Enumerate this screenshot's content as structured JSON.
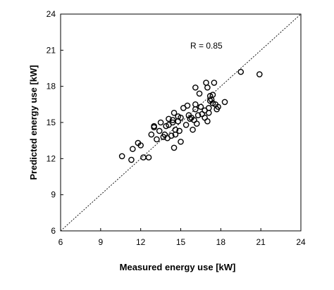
{
  "chart_data": {
    "type": "scatter",
    "xlabel": "Measured energy use [kW]",
    "ylabel": "Predicted energy use [kW]",
    "xlim": [
      6,
      24
    ],
    "ylim": [
      6,
      24
    ],
    "x_ticks": [
      "6",
      "9",
      "12",
      "15",
      "18",
      "21",
      "24"
    ],
    "y_ticks": [
      "6",
      "9",
      "12",
      "15",
      "18",
      "21",
      "24"
    ],
    "grid": false,
    "reference_line": "y = x (dotted)",
    "annotation": "R = 0.85",
    "marker": "open-circle",
    "points": [
      {
        "x": 10.6,
        "y": 12.2
      },
      {
        "x": 11.3,
        "y": 11.9
      },
      {
        "x": 11.4,
        "y": 12.8
      },
      {
        "x": 11.8,
        "y": 13.3
      },
      {
        "x": 12.0,
        "y": 13.1
      },
      {
        "x": 12.2,
        "y": 12.1
      },
      {
        "x": 12.6,
        "y": 12.1
      },
      {
        "x": 12.8,
        "y": 14.0
      },
      {
        "x": 13.0,
        "y": 14.7
      },
      {
        "x": 13.0,
        "y": 14.6
      },
      {
        "x": 13.2,
        "y": 13.6
      },
      {
        "x": 13.4,
        "y": 14.3
      },
      {
        "x": 13.5,
        "y": 15.0
      },
      {
        "x": 13.7,
        "y": 13.8
      },
      {
        "x": 13.8,
        "y": 14.0
      },
      {
        "x": 13.9,
        "y": 14.7
      },
      {
        "x": 14.0,
        "y": 13.7
      },
      {
        "x": 14.1,
        "y": 14.8
      },
      {
        "x": 14.1,
        "y": 15.3
      },
      {
        "x": 14.3,
        "y": 13.9
      },
      {
        "x": 14.4,
        "y": 15.0
      },
      {
        "x": 14.4,
        "y": 15.2
      },
      {
        "x": 14.5,
        "y": 15.8
      },
      {
        "x": 14.5,
        "y": 12.9
      },
      {
        "x": 14.6,
        "y": 14.0
      },
      {
        "x": 14.6,
        "y": 14.4
      },
      {
        "x": 14.8,
        "y": 15.5
      },
      {
        "x": 14.8,
        "y": 15.1
      },
      {
        "x": 14.9,
        "y": 14.3
      },
      {
        "x": 15.0,
        "y": 13.4
      },
      {
        "x": 15.0,
        "y": 15.4
      },
      {
        "x": 15.2,
        "y": 16.2
      },
      {
        "x": 15.4,
        "y": 14.8
      },
      {
        "x": 15.5,
        "y": 16.4
      },
      {
        "x": 15.6,
        "y": 15.6
      },
      {
        "x": 15.7,
        "y": 15.3
      },
      {
        "x": 15.8,
        "y": 15.4
      },
      {
        "x": 15.9,
        "y": 14.4
      },
      {
        "x": 16.0,
        "y": 15.2
      },
      {
        "x": 16.1,
        "y": 16.1
      },
      {
        "x": 16.1,
        "y": 16.5
      },
      {
        "x": 16.1,
        "y": 17.9
      },
      {
        "x": 16.2,
        "y": 14.9
      },
      {
        "x": 16.3,
        "y": 15.6
      },
      {
        "x": 16.4,
        "y": 17.4
      },
      {
        "x": 16.5,
        "y": 16.3
      },
      {
        "x": 16.6,
        "y": 15.7
      },
      {
        "x": 16.8,
        "y": 15.4
      },
      {
        "x": 16.8,
        "y": 16.0
      },
      {
        "x": 16.9,
        "y": 18.3
      },
      {
        "x": 17.0,
        "y": 17.9
      },
      {
        "x": 17.0,
        "y": 15.1
      },
      {
        "x": 17.1,
        "y": 15.8
      },
      {
        "x": 17.1,
        "y": 16.2
      },
      {
        "x": 17.2,
        "y": 16.8
      },
      {
        "x": 17.2,
        "y": 17.2
      },
      {
        "x": 17.3,
        "y": 16.9
      },
      {
        "x": 17.4,
        "y": 16.6
      },
      {
        "x": 17.4,
        "y": 17.3
      },
      {
        "x": 17.5,
        "y": 18.3
      },
      {
        "x": 17.6,
        "y": 16.5
      },
      {
        "x": 17.7,
        "y": 16.1
      },
      {
        "x": 17.8,
        "y": 16.3
      },
      {
        "x": 18.3,
        "y": 16.7
      },
      {
        "x": 19.5,
        "y": 19.2
      },
      {
        "x": 20.9,
        "y": 19.0
      }
    ]
  }
}
